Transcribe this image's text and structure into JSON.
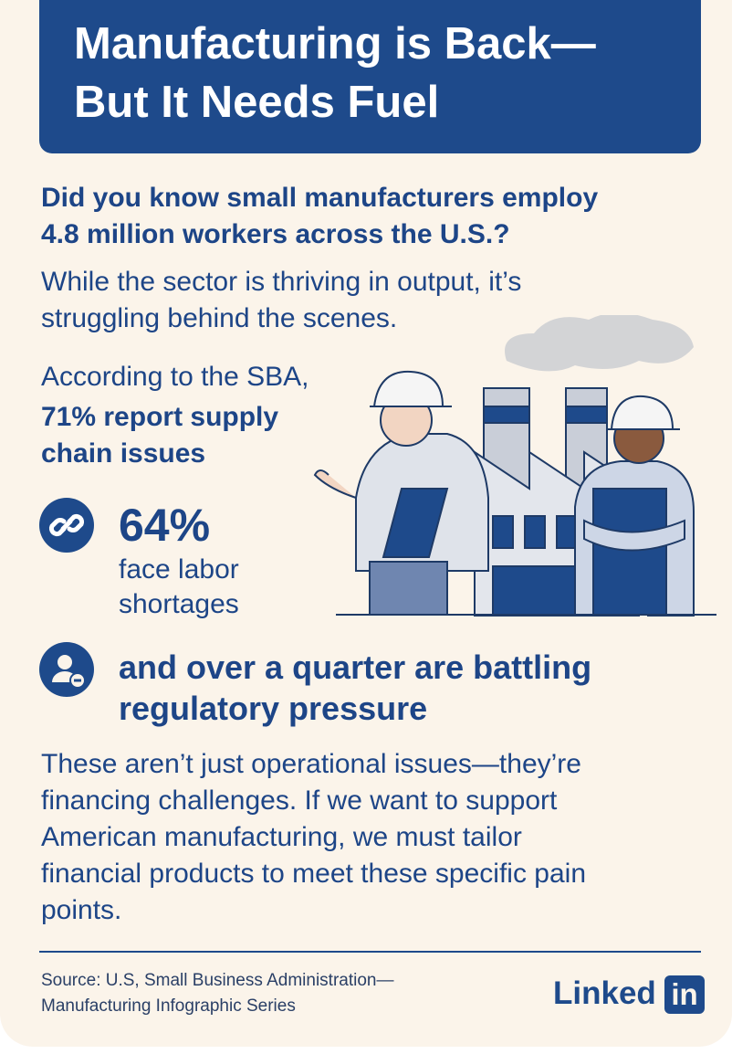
{
  "header": {
    "title": [
      "Manufacturing is Back—",
      "But It Needs Fuel"
    ]
  },
  "intro": {
    "question": [
      "Did you know small manufacturers employ",
      "4.8 million workers across the U.S.?"
    ],
    "statement": [
      "While the sector is thriving in output, it’s",
      "struggling behind the scenes."
    ]
  },
  "sba": {
    "lead": "According to the SBA,",
    "highlight": [
      "71% report supply",
      "chain issues"
    ]
  },
  "stats": [
    {
      "figure": "64%",
      "text": [
        "face labor",
        "shortages"
      ]
    },
    {
      "text": [
        "and over a quarter are battling",
        "regulatory pressure"
      ]
    }
  ],
  "conclusion": [
    "These aren’t just operational issues—they’re",
    "financing challenges. If we want to support",
    "American manufacturing, we must tailor",
    "financial products to meet these specific pain",
    "points."
  ],
  "footer": {
    "source": [
      "Source: U.S, Small Business Administration—",
      "Manufacturing Infographic Series"
    ],
    "logo": {
      "word": "Linked",
      "badge": "in"
    }
  }
}
